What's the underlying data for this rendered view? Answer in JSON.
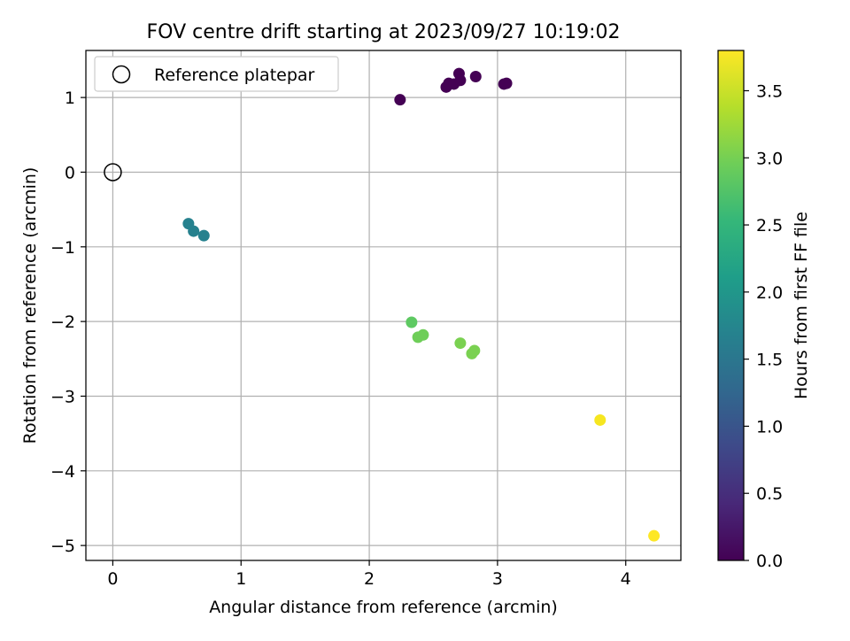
{
  "chart_data": {
    "type": "scatter",
    "title": "FOV centre drift starting at 2023/09/27 10:19:02",
    "xlabel": "Angular distance from reference (arcmin)",
    "ylabel": "Rotation from reference (arcmin)",
    "xlim": [
      -0.21,
      4.43
    ],
    "ylim": [
      -5.2,
      1.63
    ],
    "xticks": [
      0,
      1,
      2,
      3,
      4
    ],
    "xtick_labels": [
      "0",
      "1",
      "2",
      "3",
      "4"
    ],
    "yticks": [
      1,
      0,
      -1,
      -2,
      -3,
      -4,
      -5
    ],
    "ytick_labels": [
      "1",
      "0",
      "−1",
      "−2",
      "−3",
      "−4",
      "−5"
    ],
    "grid": true,
    "legend": {
      "placement": "top-left",
      "entries": [
        "Reference platepar"
      ]
    },
    "reference": {
      "x": 0,
      "y": 0
    },
    "colorbar": {
      "label": "Hours from first FF file",
      "range": [
        0,
        3.8
      ],
      "ticks": [
        0.0,
        0.5,
        1.0,
        1.5,
        2.0,
        2.5,
        3.0,
        3.5
      ],
      "tick_labels": [
        "0.0",
        "0.5",
        "1.0",
        "1.5",
        "2.0",
        "2.5",
        "3.0",
        "3.5"
      ],
      "colormap": "viridis",
      "colors": [
        "#440154",
        "#482878",
        "#3e4989",
        "#31688e",
        "#26828e",
        "#1f9e89",
        "#35b779",
        "#6ece58",
        "#b5de2b",
        "#fde725"
      ]
    },
    "points": [
      {
        "x": 2.24,
        "y": 0.97,
        "c": "#440154"
      },
      {
        "x": 2.6,
        "y": 1.14,
        "c": "#440154"
      },
      {
        "x": 2.62,
        "y": 1.19,
        "c": "#440154"
      },
      {
        "x": 2.66,
        "y": 1.18,
        "c": "#440154"
      },
      {
        "x": 2.7,
        "y": 1.32,
        "c": "#440154"
      },
      {
        "x": 2.71,
        "y": 1.23,
        "c": "#440154"
      },
      {
        "x": 2.83,
        "y": 1.28,
        "c": "#440154"
      },
      {
        "x": 3.05,
        "y": 1.18,
        "c": "#440154"
      },
      {
        "x": 3.07,
        "y": 1.19,
        "c": "#440154"
      },
      {
        "x": 0.59,
        "y": -0.69,
        "c": "#26818e"
      },
      {
        "x": 0.63,
        "y": -0.79,
        "c": "#26818e"
      },
      {
        "x": 0.71,
        "y": -0.85,
        "c": "#26818e"
      },
      {
        "x": 2.33,
        "y": -2.01,
        "c": "#5ec962"
      },
      {
        "x": 2.38,
        "y": -2.21,
        "c": "#6ece58"
      },
      {
        "x": 2.42,
        "y": -2.18,
        "c": "#6ece58"
      },
      {
        "x": 2.71,
        "y": -2.29,
        "c": "#7ad151"
      },
      {
        "x": 2.8,
        "y": -2.43,
        "c": "#7ad151"
      },
      {
        "x": 2.82,
        "y": -2.39,
        "c": "#7ad151"
      },
      {
        "x": 3.8,
        "y": -3.32,
        "c": "#f6e620"
      },
      {
        "x": 4.22,
        "y": -4.87,
        "c": "#fde725"
      }
    ]
  }
}
